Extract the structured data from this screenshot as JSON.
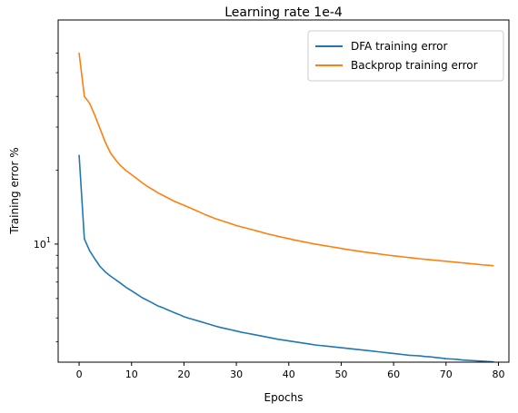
{
  "chart_data": {
    "type": "line",
    "title": "Learning rate 1e-4",
    "xlabel": "Epochs",
    "ylabel": "Training error %",
    "xlim": [
      -4,
      82
    ],
    "ylim": [
      3.3,
      82
    ],
    "yscale": "log",
    "xticks": [
      0,
      10,
      20,
      30,
      40,
      50,
      60,
      70,
      80
    ],
    "yticks_major": [
      {
        "value": 10,
        "label": "10",
        "exponent": "1"
      }
    ],
    "yticks_minor": [
      4,
      5,
      6,
      7,
      8,
      9,
      20,
      30,
      40,
      50,
      60
    ],
    "grid": false,
    "legend_position": "upper-right",
    "x": [
      0,
      1,
      2,
      3,
      4,
      5,
      6,
      7,
      8,
      9,
      10,
      11,
      12,
      13,
      14,
      15,
      16,
      17,
      18,
      19,
      20,
      21,
      22,
      23,
      24,
      25,
      26,
      27,
      28,
      29,
      30,
      31,
      32,
      33,
      34,
      35,
      36,
      37,
      38,
      39,
      40,
      41,
      42,
      43,
      44,
      45,
      46,
      47,
      48,
      49,
      50,
      51,
      52,
      53,
      54,
      55,
      56,
      57,
      58,
      59,
      60,
      61,
      62,
      63,
      64,
      65,
      66,
      67,
      68,
      69,
      70,
      71,
      72,
      73,
      74,
      75,
      76,
      77,
      78,
      79
    ],
    "series": [
      {
        "name": "DFA training error",
        "color": "#1f77b4",
        "values": [
          23.0,
          10.5,
          9.4,
          8.7,
          8.1,
          7.7,
          7.4,
          7.15,
          6.9,
          6.65,
          6.45,
          6.25,
          6.05,
          5.9,
          5.75,
          5.6,
          5.5,
          5.38,
          5.27,
          5.17,
          5.06,
          4.98,
          4.91,
          4.84,
          4.77,
          4.7,
          4.63,
          4.57,
          4.52,
          4.47,
          4.42,
          4.37,
          4.33,
          4.29,
          4.25,
          4.21,
          4.17,
          4.13,
          4.09,
          4.06,
          4.03,
          4.0,
          3.97,
          3.94,
          3.91,
          3.88,
          3.86,
          3.84,
          3.82,
          3.8,
          3.78,
          3.76,
          3.74,
          3.72,
          3.7,
          3.68,
          3.66,
          3.64,
          3.62,
          3.6,
          3.58,
          3.56,
          3.54,
          3.52,
          3.51,
          3.5,
          3.48,
          3.47,
          3.45,
          3.43,
          3.41,
          3.4,
          3.39,
          3.37,
          3.36,
          3.35,
          3.34,
          3.33,
          3.32,
          3.31
        ]
      },
      {
        "name": "Backprop training error",
        "color": "#ff7f0e",
        "values": [
          60.0,
          40.0,
          37.5,
          33.5,
          29.5,
          26.0,
          23.5,
          22.0,
          20.8,
          19.9,
          19.2,
          18.5,
          17.8,
          17.2,
          16.7,
          16.2,
          15.8,
          15.4,
          15.0,
          14.7,
          14.4,
          14.1,
          13.8,
          13.5,
          13.2,
          12.95,
          12.7,
          12.5,
          12.3,
          12.1,
          11.9,
          11.75,
          11.6,
          11.45,
          11.3,
          11.15,
          11.0,
          10.88,
          10.75,
          10.63,
          10.52,
          10.4,
          10.3,
          10.2,
          10.1,
          10.0,
          9.92,
          9.84,
          9.76,
          9.68,
          9.6,
          9.52,
          9.45,
          9.38,
          9.31,
          9.25,
          9.19,
          9.13,
          9.07,
          9.01,
          8.96,
          8.91,
          8.86,
          8.81,
          8.76,
          8.71,
          8.67,
          8.63,
          8.59,
          8.55,
          8.51,
          8.47,
          8.43,
          8.39,
          8.35,
          8.31,
          8.27,
          8.23,
          8.2,
          8.17
        ]
      }
    ]
  }
}
